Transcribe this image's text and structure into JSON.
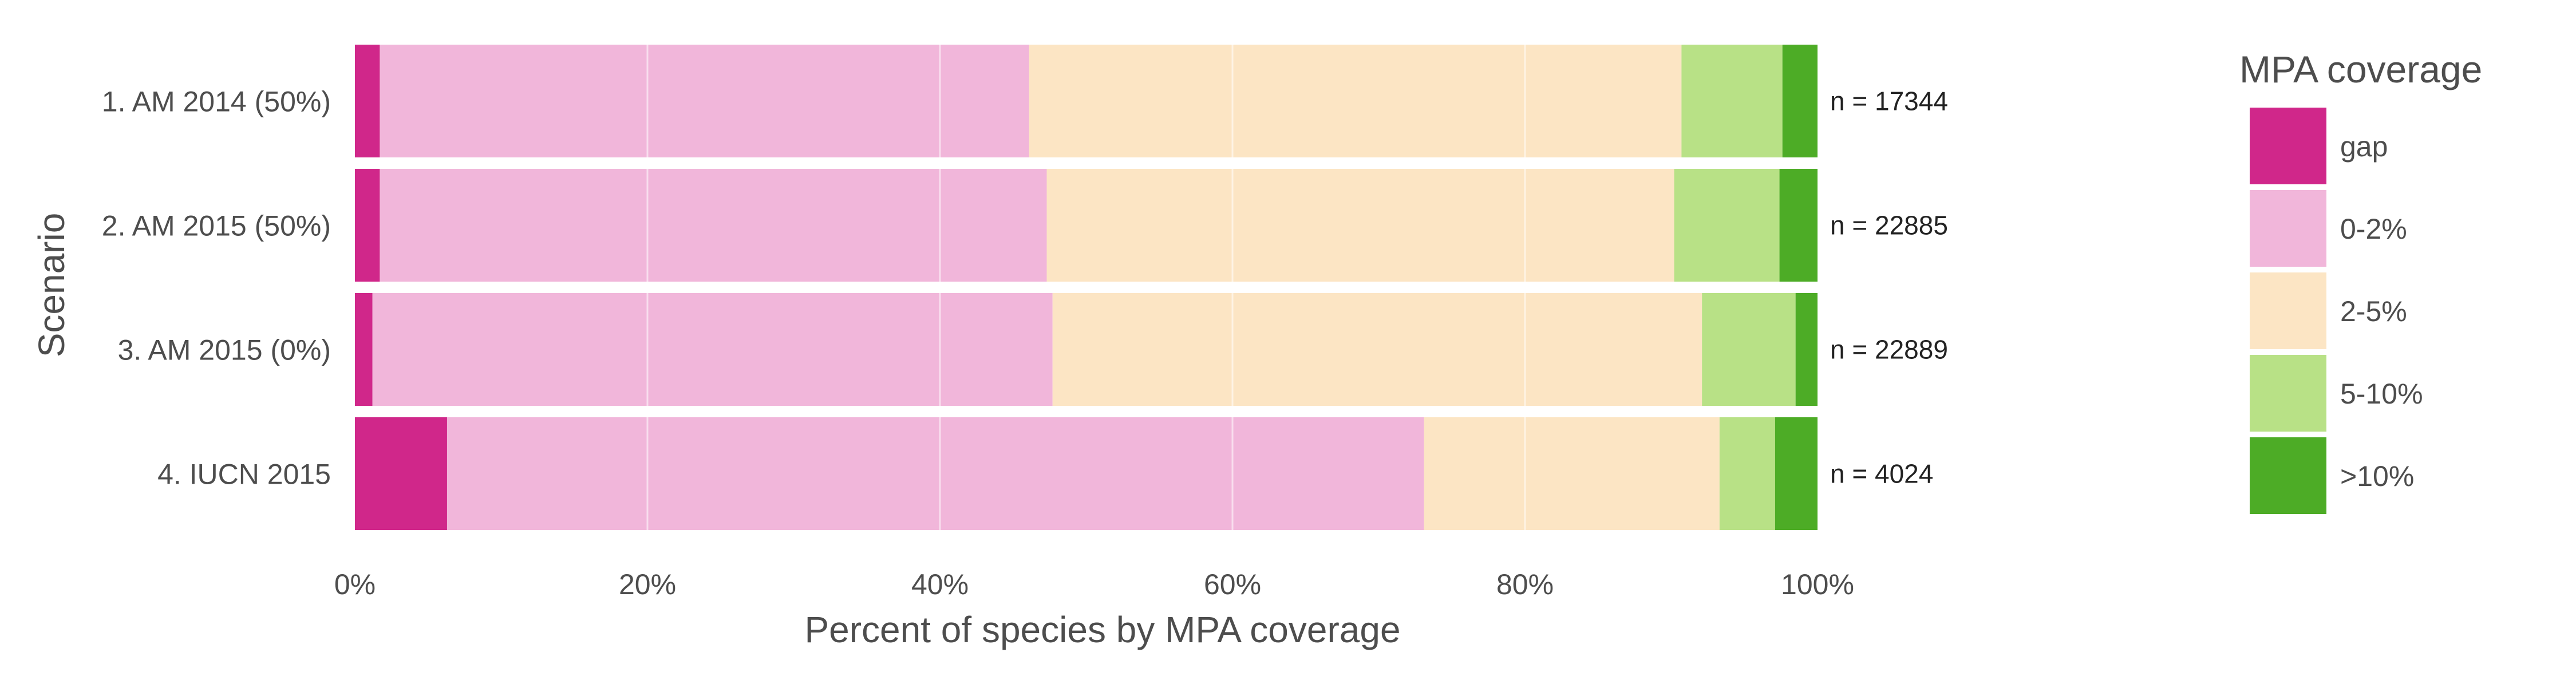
{
  "chart_data": {
    "type": "bar",
    "orientation": "horizontal",
    "stacked": true,
    "normalized": true,
    "categories": [
      "1. AM 2014 (50%)",
      "2. AM 2015 (50%)",
      "3. AM 2015 (0%)",
      "4. IUCN 2015"
    ],
    "n_labels": [
      "n = 17344",
      "n = 22885",
      "n = 22889",
      "n = 4024"
    ],
    "series": [
      {
        "name": "gap",
        "color": "#d0278a",
        "values": [
          1.7,
          1.7,
          1.2,
          6.3
        ]
      },
      {
        "name": "0-2%",
        "color": "#f1b6da",
        "values": [
          44.4,
          45.6,
          46.5,
          66.8
        ]
      },
      {
        "name": "2-5%",
        "color": "#fce5c4",
        "values": [
          44.6,
          42.9,
          44.4,
          20.2
        ]
      },
      {
        "name": "5-10%",
        "color": "#b8e186",
        "values": [
          6.9,
          7.2,
          6.4,
          3.8
        ]
      },
      {
        "name": ">10%",
        "color": "#4dac26",
        "values": [
          2.4,
          2.6,
          1.5,
          2.9
        ]
      }
    ],
    "xlim": [
      0,
      100
    ],
    "x_ticks": [
      0,
      20,
      40,
      60,
      80,
      100
    ],
    "x_tick_labels": [
      "0%",
      "20%",
      "40%",
      "60%",
      "80%",
      "100%"
    ],
    "xlabel": "Percent of species by MPA coverage",
    "ylabel": "Scenario",
    "legend_title": "MPA coverage",
    "legend_position": "right",
    "grid": true
  }
}
